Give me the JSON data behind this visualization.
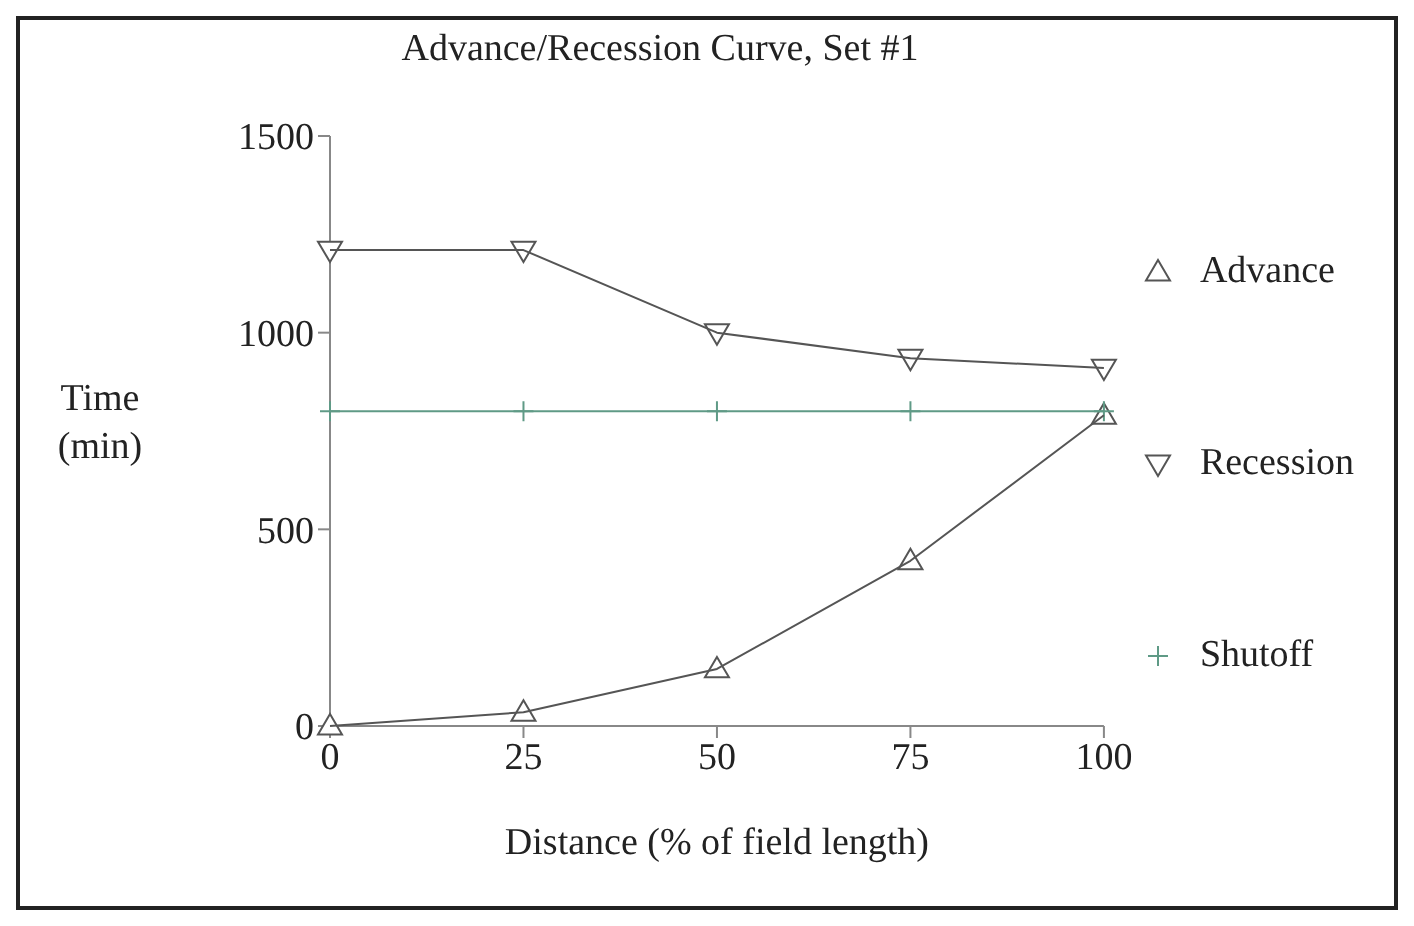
{
  "chart_data": {
    "type": "line",
    "title": "Advance/Recession Curve, Set #1",
    "xlabel": "Distance (% of field length)",
    "ylabel": "Time (min)",
    "x": [
      0,
      25,
      50,
      75,
      100
    ],
    "series": [
      {
        "name": "Advance",
        "color": "#555555",
        "marker": "triangle",
        "values": [
          0,
          35,
          145,
          420,
          790
        ]
      },
      {
        "name": "Recession",
        "color": "#555555",
        "marker": "triangle_down",
        "values": [
          1210,
          1210,
          1000,
          935,
          910
        ]
      },
      {
        "name": "Shutoff",
        "color": "#5f9a86",
        "marker": "cross",
        "values": [
          800,
          800,
          800,
          800,
          800
        ]
      }
    ],
    "xlim": [
      0,
      100
    ],
    "xticks": [
      0,
      25,
      50,
      75,
      100
    ],
    "ylim": [
      0,
      1500
    ],
    "yticks": [
      0,
      500,
      1000,
      1500
    ],
    "legend": "right",
    "grid": false
  }
}
